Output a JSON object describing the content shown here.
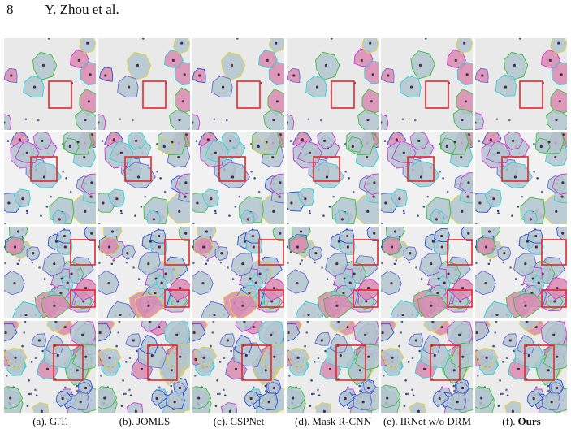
{
  "header": {
    "page_number": "8",
    "authors": "Y. Zhou et al."
  },
  "figure": {
    "captions": [
      {
        "prefix": "(a).",
        "name": "G.T."
      },
      {
        "prefix": "(b).",
        "name": "JOMLS"
      },
      {
        "prefix": "(c).",
        "name": "CSPNet"
      },
      {
        "prefix": "(d).",
        "name": "Mask R-CNN"
      },
      {
        "prefix": "(e).",
        "name": "IRNet w/o DRM"
      },
      {
        "prefix": "(f).",
        "name": "Ours"
      }
    ]
  }
}
